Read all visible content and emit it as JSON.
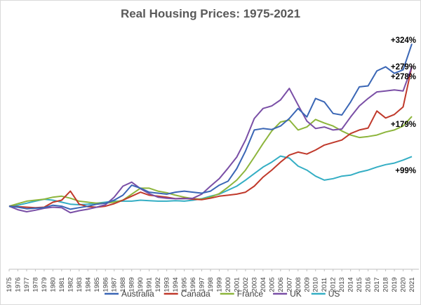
{
  "chart_data": {
    "type": "line",
    "title": "Real Housing Prices: 1975-2021",
    "xlabel": "",
    "ylabel": "",
    "grid": false,
    "legend_position": "bottom",
    "ylim": [
      -60,
      340
    ],
    "x_ticks": [
      "1975",
      "1976",
      "1977",
      "1978",
      "1979",
      "1980",
      "1981",
      "1982",
      "1983",
      "1984",
      "1985",
      "1986",
      "1987",
      "1988",
      "1989",
      "1990",
      "1991",
      "1992",
      "1993",
      "1994",
      "1995",
      "1996",
      "1997",
      "1998",
      "1999",
      "2000",
      "2001",
      "2002",
      "2003",
      "2004",
      "2005",
      "2006",
      "2007",
      "2008",
      "2009",
      "2010",
      "2011",
      "2012",
      "2013",
      "2014",
      "2015",
      "2016",
      "2017",
      "2018",
      "2019",
      "2020",
      "2021"
    ],
    "series": [
      {
        "name": "Australia",
        "color": "#3a66b5",
        "end_label": "+324%",
        "values": [
          0,
          -2,
          -5,
          -4,
          -3,
          2,
          0,
          -6,
          -3,
          0,
          4,
          6,
          12,
          22,
          42,
          36,
          28,
          26,
          24,
          28,
          30,
          28,
          26,
          30,
          42,
          50,
          75,
          110,
          152,
          155,
          153,
          160,
          175,
          195,
          178,
          215,
          208,
          185,
          182,
          208,
          238,
          240,
          270,
          278,
          265,
          272,
          324
        ]
      },
      {
        "name": "Canada",
        "color": "#c0392b",
        "end_label": "+279%",
        "values": [
          0,
          -1,
          -2,
          -3,
          -2,
          8,
          12,
          30,
          4,
          -1,
          -2,
          0,
          5,
          12,
          20,
          28,
          22,
          20,
          18,
          15,
          16,
          14,
          13,
          16,
          20,
          22,
          24,
          28,
          40,
          58,
          72,
          88,
          102,
          108,
          104,
          112,
          122,
          127,
          132,
          145,
          152,
          156,
          190,
          176,
          183,
          198,
          279
        ]
      },
      {
        "name": "France",
        "color": "#8db53c",
        "end_label": "+179%",
        "values": [
          0,
          5,
          10,
          12,
          14,
          18,
          20,
          16,
          10,
          8,
          6,
          6,
          8,
          12,
          24,
          36,
          36,
          30,
          27,
          22,
          18,
          15,
          14,
          18,
          25,
          38,
          52,
          72,
          98,
          125,
          150,
          168,
          172,
          152,
          158,
          173,
          166,
          160,
          150,
          142,
          137,
          139,
          142,
          148,
          152,
          160,
          179
        ]
      },
      {
        "name": "UK",
        "color": "#7a4fa6",
        "end_label": "+278%",
        "values": [
          0,
          -7,
          -11,
          -8,
          -4,
          -2,
          -3,
          -13,
          -9,
          -6,
          -2,
          3,
          18,
          40,
          48,
          35,
          25,
          18,
          16,
          15,
          15,
          16,
          24,
          40,
          55,
          76,
          98,
          132,
          175,
          195,
          200,
          212,
          235,
          202,
          170,
          155,
          158,
          152,
          154,
          178,
          200,
          215,
          228,
          230,
          232,
          230,
          278
        ]
      },
      {
        "name": "US",
        "color": "#34aec4",
        "end_label": "+99%",
        "values": [
          0,
          2,
          6,
          10,
          14,
          12,
          8,
          4,
          3,
          4,
          6,
          8,
          10,
          10,
          10,
          12,
          11,
          10,
          10,
          11,
          10,
          12,
          15,
          20,
          24,
          32,
          40,
          52,
          65,
          78,
          88,
          100,
          96,
          80,
          72,
          60,
          52,
          55,
          60,
          62,
          68,
          72,
          78,
          83,
          86,
          92,
          99
        ]
      }
    ]
  }
}
